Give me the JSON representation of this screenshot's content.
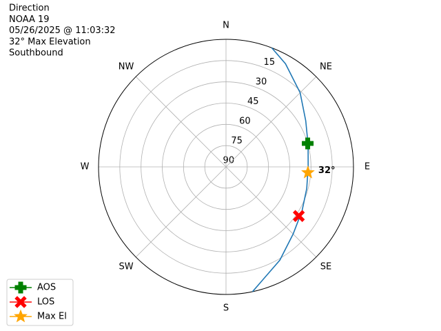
{
  "chart_data": {
    "type": "polar",
    "title_lines": [
      "Direction",
      "NOAA 19",
      "05/26/2025 @ 11:03:32",
      "32° Max Elevation",
      "Southbound"
    ],
    "theta_direction": "clockwise",
    "theta_zero": "N",
    "thetaticks": [
      {
        "value": 0,
        "label": "N"
      },
      {
        "value": 45,
        "label": "NE"
      },
      {
        "value": 90,
        "label": "E"
      },
      {
        "value": 135,
        "label": "SE"
      },
      {
        "value": 180,
        "label": "S"
      },
      {
        "value": 225,
        "label": "SW"
      },
      {
        "value": 270,
        "label": "W"
      },
      {
        "value": 315,
        "label": "NW"
      }
    ],
    "rlim": [
      90,
      0
    ],
    "rticks": [
      90,
      75,
      60,
      45,
      30,
      15
    ],
    "grid": true,
    "legend": "lower left",
    "track": {
      "color": "#1f77b4",
      "theta": [
        21,
        30,
        45,
        60,
        75,
        90,
        105,
        120,
        135,
        150,
        168
      ],
      "values": [
        0,
        6,
        16,
        25,
        30,
        32,
        31,
        28,
        23,
        14,
        0
      ]
    },
    "series": [
      {
        "name": "AOS",
        "color": "#008000",
        "marker": "plus",
        "theta": [
          74
        ],
        "values": [
          30
        ]
      },
      {
        "name": "LOS",
        "color": "#ff0000",
        "marker": "x",
        "theta": [
          124
        ],
        "values": [
          28
        ]
      },
      {
        "name": "Max El",
        "color": "#ffa500",
        "marker": "star",
        "theta": [
          94
        ],
        "values": [
          32
        ],
        "value_labels": [
          "32°"
        ]
      }
    ]
  }
}
